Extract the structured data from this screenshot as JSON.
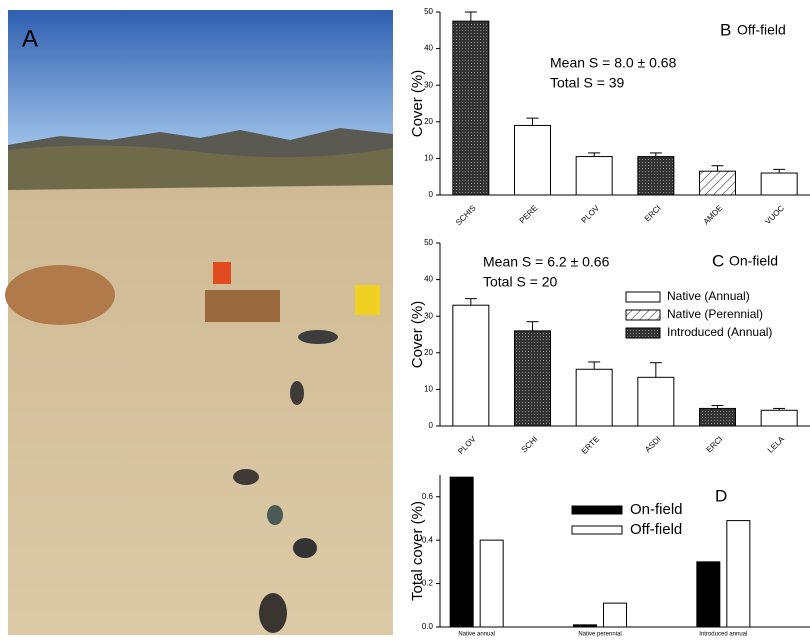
{
  "panel_a": {
    "label": "A"
  },
  "chart_data": [
    {
      "type": "bar",
      "panel_label": "B",
      "title": "Off-field",
      "ylabel": "Cover (%)",
      "annotations": [
        "Mean S = 8.0 ± 0.68",
        "Total S = 39"
      ],
      "categories": [
        "SCHIS",
        "PERE",
        "PLOV",
        "ERCI",
        "AMDE",
        "VUOC"
      ],
      "values": [
        47.5,
        19,
        10.5,
        10.5,
        6.5,
        6
      ],
      "errors": [
        2.5,
        2,
        1,
        1,
        1.5,
        1
      ],
      "fills": [
        "dark",
        "white",
        "white",
        "dark",
        "hatch",
        "white"
      ],
      "ylim": [
        0,
        50
      ],
      "yticks": [
        0,
        10,
        20,
        30,
        40,
        50
      ]
    },
    {
      "type": "bar",
      "panel_label": "C",
      "title": "On-field",
      "ylabel": "Cover (%)",
      "annotations": [
        "Mean S = 6.2 ± 0.66",
        "Total S = 20"
      ],
      "categories": [
        "PLOV",
        "SCHI",
        "ERTE",
        "ASDI",
        "ERCI",
        "LELA"
      ],
      "values": [
        33,
        26,
        15.5,
        13.3,
        4.8,
        4.3
      ],
      "errors": [
        1.8,
        2.5,
        2,
        4,
        0.8,
        0.5
      ],
      "fills": [
        "white",
        "dark",
        "white",
        "white",
        "dark",
        "white"
      ],
      "legend": [
        {
          "name": "Native (Annual)",
          "fill": "white"
        },
        {
          "name": "Native (Perennial)",
          "fill": "hatch"
        },
        {
          "name": "Introduced (Annual)",
          "fill": "dark"
        }
      ],
      "ylim": [
        0,
        50
      ],
      "yticks": [
        0,
        10,
        20,
        30,
        40,
        50
      ]
    },
    {
      "type": "grouped-bar",
      "panel_label": "D",
      "ylabel": "Total cover (%)",
      "categories": [
        "Native annual",
        "Native perennial",
        "Introduced annual"
      ],
      "series": [
        {
          "name": "On-field",
          "color": "#000000",
          "values": [
            0.69,
            0.01,
            0.3
          ]
        },
        {
          "name": "Off-field",
          "color": "#ffffff",
          "values": [
            0.4,
            0.11,
            0.49
          ]
        }
      ],
      "ylim": [
        0,
        0.7
      ],
      "yticks": [
        {
          "value": 0,
          "label": "0.0"
        },
        0.2,
        0.4,
        0.6
      ]
    }
  ]
}
